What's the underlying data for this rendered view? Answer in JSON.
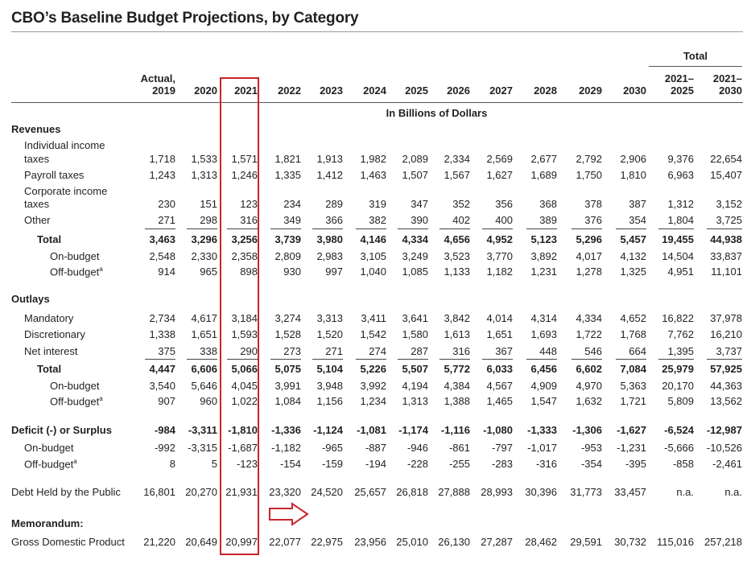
{
  "title": "CBO’s Baseline Budget Projections, by Category",
  "header": {
    "total_group": "Total",
    "columns": [
      [
        "Actual,",
        "2019"
      ],
      [
        "",
        "2020"
      ],
      [
        "",
        "2021"
      ],
      [
        "",
        "2022"
      ],
      [
        "",
        "2023"
      ],
      [
        "",
        "2024"
      ],
      [
        "",
        "2025"
      ],
      [
        "",
        "2026"
      ],
      [
        "",
        "2027"
      ],
      [
        "",
        "2028"
      ],
      [
        "",
        "2029"
      ],
      [
        "",
        "2030"
      ],
      [
        "2021–",
        "2025"
      ],
      [
        "2021–",
        "2030"
      ]
    ],
    "units": "In Billions of Dollars"
  },
  "sections": {
    "revenues": "Revenues",
    "outlays": "Outlays",
    "memorandum": "Memorandum:"
  },
  "rows": {
    "individual_income": {
      "label_line1": "Individual income",
      "label_line2": "taxes",
      "values": [
        "1,718",
        "1,533",
        "1,571",
        "1,821",
        "1,913",
        "1,982",
        "2,089",
        "2,334",
        "2,569",
        "2,677",
        "2,792",
        "2,906",
        "9,376",
        "22,654"
      ]
    },
    "payroll": {
      "label": "Payroll taxes",
      "values": [
        "1,243",
        "1,313",
        "1,246",
        "1,335",
        "1,412",
        "1,463",
        "1,507",
        "1,567",
        "1,627",
        "1,689",
        "1,750",
        "1,810",
        "6,963",
        "15,407"
      ]
    },
    "corporate": {
      "label_line1": "Corporate income",
      "label_line2": "taxes",
      "values": [
        "230",
        "151",
        "123",
        "234",
        "289",
        "319",
        "347",
        "352",
        "356",
        "368",
        "378",
        "387",
        "1,312",
        "3,152"
      ]
    },
    "other": {
      "label": "Other",
      "values": [
        "271",
        "298",
        "316",
        "349",
        "366",
        "382",
        "390",
        "402",
        "400",
        "389",
        "376",
        "354",
        "1,804",
        "3,725"
      ]
    },
    "rev_total": {
      "label": "Total",
      "values": [
        "3,463",
        "3,296",
        "3,256",
        "3,739",
        "3,980",
        "4,146",
        "4,334",
        "4,656",
        "4,952",
        "5,123",
        "5,296",
        "5,457",
        "19,455",
        "44,938"
      ]
    },
    "rev_on": {
      "label": "On-budget",
      "values": [
        "2,548",
        "2,330",
        "2,358",
        "2,809",
        "2,983",
        "3,105",
        "3,249",
        "3,523",
        "3,770",
        "3,892",
        "4,017",
        "4,132",
        "14,504",
        "33,837"
      ]
    },
    "rev_off": {
      "label": "Off-budget",
      "sup": "a",
      "values": [
        "914",
        "965",
        "898",
        "930",
        "997",
        "1,040",
        "1,085",
        "1,133",
        "1,182",
        "1,231",
        "1,278",
        "1,325",
        "4,951",
        "11,101"
      ]
    },
    "mandatory": {
      "label": "Mandatory",
      "values": [
        "2,734",
        "4,617",
        "3,184",
        "3,274",
        "3,313",
        "3,411",
        "3,641",
        "3,842",
        "4,014",
        "4,314",
        "4,334",
        "4,652",
        "16,822",
        "37,978"
      ]
    },
    "discretionary": {
      "label": "Discretionary",
      "values": [
        "1,338",
        "1,651",
        "1,593",
        "1,528",
        "1,520",
        "1,542",
        "1,580",
        "1,613",
        "1,651",
        "1,693",
        "1,722",
        "1,768",
        "7,762",
        "16,210"
      ]
    },
    "net_interest": {
      "label": "Net interest",
      "values": [
        "375",
        "338",
        "290",
        "273",
        "271",
        "274",
        "287",
        "316",
        "367",
        "448",
        "546",
        "664",
        "1,395",
        "3,737"
      ]
    },
    "out_total": {
      "label": "Total",
      "values": [
        "4,447",
        "6,606",
        "5,066",
        "5,075",
        "5,104",
        "5,226",
        "5,507",
        "5,772",
        "6,033",
        "6,456",
        "6,602",
        "7,084",
        "25,979",
        "57,925"
      ]
    },
    "out_on": {
      "label": "On-budget",
      "values": [
        "3,540",
        "5,646",
        "4,045",
        "3,991",
        "3,948",
        "3,992",
        "4,194",
        "4,384",
        "4,567",
        "4,909",
        "4,970",
        "5,363",
        "20,170",
        "44,363"
      ]
    },
    "out_off": {
      "label": "Off-budget",
      "sup": "a",
      "values": [
        "907",
        "960",
        "1,022",
        "1,084",
        "1,156",
        "1,234",
        "1,313",
        "1,388",
        "1,465",
        "1,547",
        "1,632",
        "1,721",
        "5,809",
        "13,562"
      ]
    },
    "deficit": {
      "label": "Deficit (-) or Surplus",
      "values": [
        "-984",
        "-3,311",
        "-1,810",
        "-1,336",
        "-1,124",
        "-1,081",
        "-1,174",
        "-1,116",
        "-1,080",
        "-1,333",
        "-1,306",
        "-1,627",
        "-6,524",
        "-12,987"
      ]
    },
    "def_on": {
      "label": "On-budget",
      "values": [
        "-992",
        "-3,315",
        "-1,687",
        "-1,182",
        "-965",
        "-887",
        "-946",
        "-861",
        "-797",
        "-1,017",
        "-953",
        "-1,231",
        "-5,666",
        "-10,526"
      ]
    },
    "def_off": {
      "label": "Off-budget",
      "sup": "a",
      "values": [
        "8",
        "5",
        "-123",
        "-154",
        "-159",
        "-194",
        "-228",
        "-255",
        "-283",
        "-316",
        "-354",
        "-395",
        "-858",
        "-2,461"
      ]
    },
    "debt": {
      "label": "Debt Held by the Public",
      "values": [
        "16,801",
        "20,270",
        "21,931",
        "23,320",
        "24,520",
        "25,657",
        "26,818",
        "27,888",
        "28,993",
        "30,396",
        "31,773",
        "33,457",
        "n.a.",
        "n.a."
      ]
    },
    "gdp": {
      "label": "Gross Domestic Product",
      "values": [
        "21,220",
        "20,649",
        "20,997",
        "22,077",
        "22,975",
        "23,956",
        "25,010",
        "26,130",
        "27,287",
        "28,462",
        "29,591",
        "30,732",
        "115,016",
        "257,218"
      ]
    }
  },
  "highlight": {
    "column": "2021",
    "color": "#c9252c"
  }
}
